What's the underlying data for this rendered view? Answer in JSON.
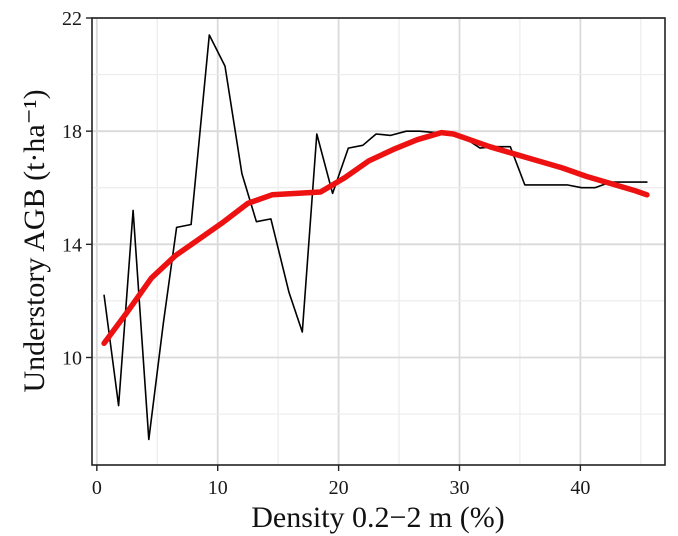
{
  "chart_data": {
    "type": "line",
    "title": "",
    "xlabel": "Density 0.2−2 m (%)",
    "ylabel": "Understory AGB (t·ha⁻¹)",
    "xlim": [
      -0.4,
      47
    ],
    "ylim": [
      6.2,
      22
    ],
    "x_ticks": [
      0,
      10,
      20,
      30,
      40
    ],
    "y_ticks": [
      10,
      14,
      18,
      22
    ],
    "grid": true,
    "legend": "none",
    "series": [
      {
        "color": "#000000",
        "points": [
          [
            0.6,
            12.2
          ],
          [
            1.8,
            8.3
          ],
          [
            3.0,
            15.2
          ],
          [
            4.3,
            7.1
          ],
          [
            5.5,
            11.2
          ],
          [
            6.6,
            14.6
          ],
          [
            7.8,
            14.7
          ],
          [
            9.3,
            21.4
          ],
          [
            10.6,
            20.3
          ],
          [
            12.0,
            16.5
          ],
          [
            13.2,
            14.8
          ],
          [
            14.4,
            14.9
          ],
          [
            15.9,
            12.3
          ],
          [
            17.0,
            10.9
          ],
          [
            18.2,
            17.9
          ],
          [
            19.5,
            15.8
          ],
          [
            20.8,
            17.4
          ],
          [
            22.0,
            17.5
          ],
          [
            23.1,
            17.9
          ],
          [
            24.3,
            17.85
          ],
          [
            25.6,
            18.0
          ],
          [
            26.7,
            18.0
          ],
          [
            28.0,
            17.95
          ],
          [
            29.2,
            17.9
          ],
          [
            30.3,
            17.8
          ],
          [
            31.7,
            17.4
          ],
          [
            32.8,
            17.45
          ],
          [
            34.2,
            17.45
          ],
          [
            35.4,
            16.1
          ],
          [
            36.6,
            16.1
          ],
          [
            37.7,
            16.1
          ],
          [
            38.9,
            16.1
          ],
          [
            40.1,
            16.0
          ],
          [
            41.2,
            16.0
          ],
          [
            42.5,
            16.2
          ],
          [
            43.8,
            16.2
          ],
          [
            45.5,
            16.2
          ]
        ]
      },
      {
        "color": "#ee1111",
        "points": [
          [
            0.6,
            10.5
          ],
          [
            2.5,
            11.6
          ],
          [
            4.5,
            12.8
          ],
          [
            6.5,
            13.6
          ],
          [
            8.5,
            14.2
          ],
          [
            10.5,
            14.8
          ],
          [
            12.5,
            15.45
          ],
          [
            14.5,
            15.75
          ],
          [
            16.5,
            15.8
          ],
          [
            18.5,
            15.85
          ],
          [
            20.5,
            16.35
          ],
          [
            22.5,
            16.95
          ],
          [
            24.5,
            17.35
          ],
          [
            26.5,
            17.7
          ],
          [
            28.5,
            17.95
          ],
          [
            29.5,
            17.9
          ],
          [
            30.5,
            17.75
          ],
          [
            32.5,
            17.45
          ],
          [
            34.5,
            17.2
          ],
          [
            36.5,
            16.95
          ],
          [
            38.5,
            16.7
          ],
          [
            40.5,
            16.4
          ],
          [
            42.5,
            16.15
          ],
          [
            44.5,
            15.9
          ],
          [
            45.5,
            15.75
          ]
        ]
      }
    ]
  }
}
